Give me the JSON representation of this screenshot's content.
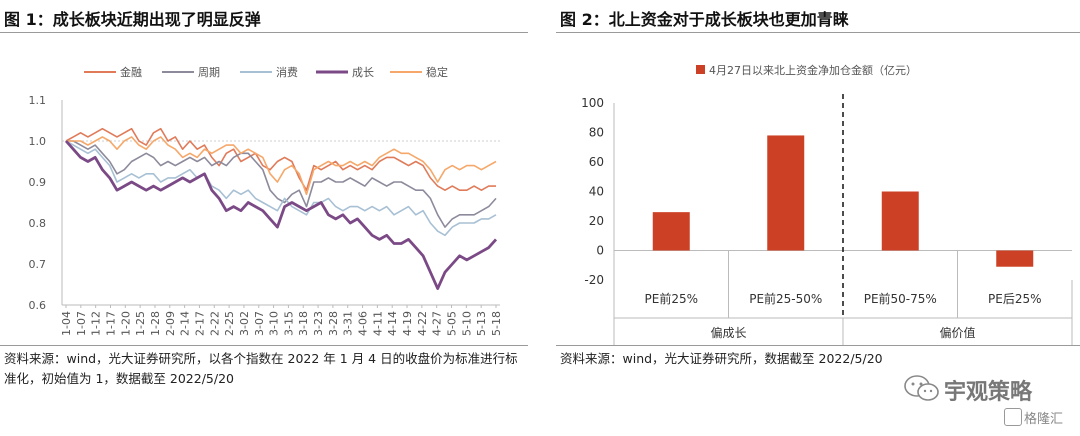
{
  "left": {
    "title": "图 1：成长板块近期出现了明显反弹",
    "source": "资料来源：wind，光大证券研究所，以各个指数在 2022 年 1 月 4 日的收盘价为标准进行标准化，初始值为 1，数据截至 2022/5/20"
  },
  "right": {
    "title": "图 2：北上资金对于成长板块也更加青睐",
    "source": "资料来源：wind，光大证券研究所，数据截至 2022/5/20"
  },
  "watermark": {
    "text": "宇观策略",
    "badge": "格隆汇"
  },
  "colors": {
    "jinrong": "#e07b5a",
    "zhouqi": "#8d8a9b",
    "xiaofei": "#a8c0d4",
    "chengzhang": "#7b4a86",
    "wending": "#f5a86a",
    "bar": "#cc4125"
  },
  "chart_data": [
    {
      "type": "line",
      "legend": [
        "金融",
        "周期",
        "消费",
        "成长",
        "稳定"
      ],
      "ylim": [
        0.6,
        1.1
      ],
      "yticks": [
        "0.6",
        "0.7",
        "0.8",
        "0.9",
        "1.0",
        "1.1"
      ],
      "x_labels": [
        "1-04",
        "1-07",
        "1-12",
        "1-17",
        "1-20",
        "1-25",
        "1-28",
        "2-09",
        "2-14",
        "2-17",
        "2-22",
        "2-25",
        "3-02",
        "3-07",
        "3-10",
        "3-15",
        "3-18",
        "3-23",
        "3-28",
        "3-31",
        "4-06",
        "4-11",
        "4-14",
        "4-19",
        "4-22",
        "4-27",
        "5-05",
        "5-10",
        "5-13",
        "5-18"
      ],
      "series": [
        {
          "name": "金融",
          "values": [
            1.0,
            1.01,
            1.02,
            1.01,
            1.02,
            1.03,
            1.02,
            1.01,
            1.02,
            1.03,
            1.0,
            0.99,
            1.02,
            1.03,
            1.0,
            1.01,
            0.98,
            1.0,
            0.98,
            0.99,
            0.96,
            0.94,
            0.97,
            0.98,
            0.95,
            0.96,
            0.97,
            0.94,
            0.93,
            0.95,
            0.96,
            0.95,
            0.91,
            0.88,
            0.94,
            0.93,
            0.94,
            0.95,
            0.93,
            0.94,
            0.93,
            0.94,
            0.93,
            0.95,
            0.96,
            0.96,
            0.95,
            0.94,
            0.95,
            0.94,
            0.91,
            0.89,
            0.88,
            0.89,
            0.88,
            0.88,
            0.89,
            0.88,
            0.89,
            0.89
          ]
        },
        {
          "name": "周期",
          "values": [
            1.0,
            1.0,
            0.99,
            0.98,
            0.99,
            0.97,
            0.95,
            0.92,
            0.93,
            0.95,
            0.96,
            0.97,
            0.96,
            0.94,
            0.95,
            0.94,
            0.95,
            0.96,
            0.95,
            0.96,
            0.94,
            0.95,
            0.94,
            0.96,
            0.97,
            0.97,
            0.95,
            0.93,
            0.88,
            0.86,
            0.85,
            0.87,
            0.88,
            0.84,
            0.9,
            0.9,
            0.91,
            0.9,
            0.9,
            0.91,
            0.9,
            0.89,
            0.91,
            0.9,
            0.89,
            0.9,
            0.9,
            0.89,
            0.88,
            0.88,
            0.86,
            0.82,
            0.79,
            0.81,
            0.82,
            0.82,
            0.82,
            0.83,
            0.84,
            0.86
          ]
        },
        {
          "name": "消费",
          "values": [
            1.0,
            0.99,
            0.98,
            0.97,
            0.98,
            0.96,
            0.94,
            0.9,
            0.91,
            0.92,
            0.91,
            0.92,
            0.92,
            0.9,
            0.91,
            0.91,
            0.92,
            0.93,
            0.91,
            0.92,
            0.89,
            0.88,
            0.86,
            0.88,
            0.87,
            0.88,
            0.86,
            0.85,
            0.84,
            0.83,
            0.86,
            0.84,
            0.83,
            0.82,
            0.85,
            0.85,
            0.86,
            0.84,
            0.83,
            0.84,
            0.84,
            0.83,
            0.84,
            0.83,
            0.84,
            0.82,
            0.83,
            0.84,
            0.82,
            0.83,
            0.8,
            0.78,
            0.77,
            0.79,
            0.8,
            0.8,
            0.8,
            0.81,
            0.81,
            0.82
          ]
        },
        {
          "name": "成长",
          "values": [
            1.0,
            0.98,
            0.96,
            0.95,
            0.96,
            0.93,
            0.91,
            0.88,
            0.89,
            0.9,
            0.89,
            0.88,
            0.89,
            0.88,
            0.89,
            0.9,
            0.91,
            0.9,
            0.91,
            0.92,
            0.88,
            0.86,
            0.83,
            0.84,
            0.83,
            0.85,
            0.84,
            0.83,
            0.81,
            0.79,
            0.84,
            0.85,
            0.84,
            0.83,
            0.84,
            0.85,
            0.82,
            0.81,
            0.82,
            0.8,
            0.81,
            0.79,
            0.77,
            0.76,
            0.77,
            0.75,
            0.75,
            0.76,
            0.74,
            0.72,
            0.68,
            0.64,
            0.68,
            0.7,
            0.72,
            0.71,
            0.72,
            0.73,
            0.74,
            0.76
          ]
        },
        {
          "name": "稳定",
          "values": [
            1.0,
            1.0,
            1.0,
            0.99,
            1.0,
            1.01,
            1.0,
            0.98,
            1.0,
            1.01,
            0.99,
            0.98,
            1.0,
            1.01,
            0.99,
            0.98,
            0.96,
            0.97,
            0.96,
            0.98,
            0.97,
            0.98,
            0.99,
            0.99,
            0.97,
            0.98,
            0.97,
            0.96,
            0.92,
            0.9,
            0.93,
            0.94,
            0.92,
            0.87,
            0.93,
            0.94,
            0.95,
            0.94,
            0.94,
            0.95,
            0.94,
            0.95,
            0.94,
            0.96,
            0.97,
            0.98,
            0.97,
            0.97,
            0.96,
            0.95,
            0.93,
            0.9,
            0.93,
            0.94,
            0.93,
            0.94,
            0.94,
            0.93,
            0.94,
            0.95
          ]
        }
      ]
    },
    {
      "type": "bar",
      "legend": [
        "4月27日以来北上资金净加仓金额（亿元）"
      ],
      "categories": [
        "PE前25%",
        "PE前25-50%",
        "PE前50-75%",
        "PE后25%"
      ],
      "values": [
        26,
        78,
        40,
        -11
      ],
      "groups": [
        {
          "label": "偏成长",
          "categories": [
            "PE前25%",
            "PE前25-50%"
          ]
        },
        {
          "label": "偏价值",
          "categories": [
            "PE前50-75%",
            "PE后25%"
          ]
        }
      ],
      "ylim": [
        -20,
        100
      ],
      "yticks": [
        "-20",
        "0",
        "20",
        "40",
        "60",
        "80",
        "100"
      ]
    }
  ]
}
